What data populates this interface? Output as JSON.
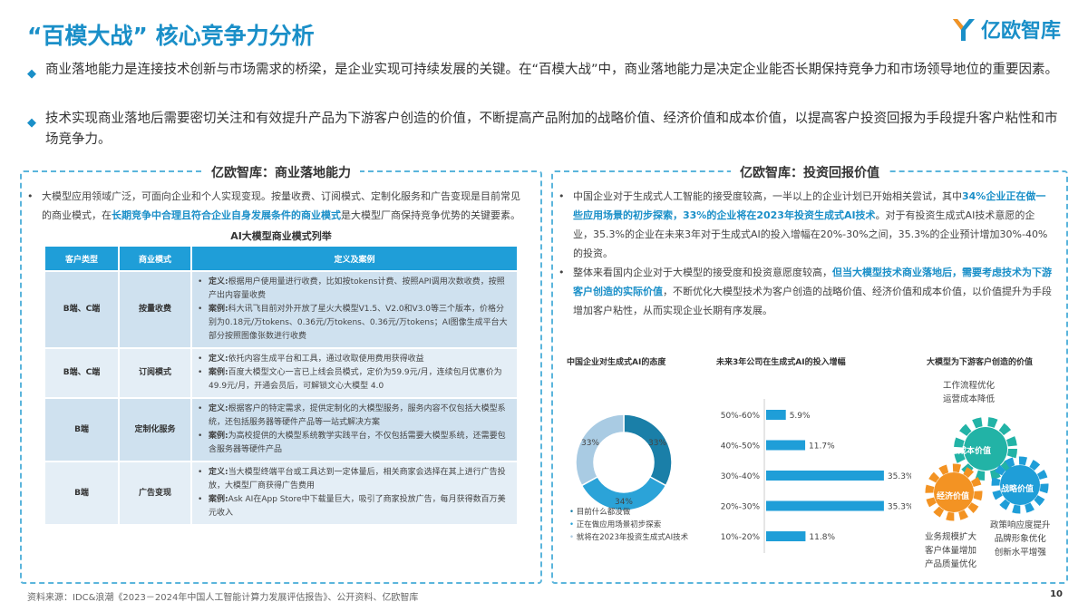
{
  "header": {
    "title": "“百模大战” 核心竞争力分析",
    "logo": "亿欧智库"
  },
  "intro": [
    "商业落地能力是连接技术创新与市场需求的桥梁，是企业实现可持续发展的关键。在“百模大战”中，商业落地能力是决定企业能否长期保持竞争力和市场领导地位的重要因素。",
    "技术实现商业落地后需要密切关注和有效提升产品为下游客户创造的价值，不断提高产品附加的战略价值、经济价值和成本价值，以提高客户投资回报为手段提升客户粘性和市场竞争力。"
  ],
  "left": {
    "title": "亿欧智库：商业落地能力",
    "bullet_a": "大模型应用领域广泛，可面向企业和个人实现变现。按量收费、订阅模式、定制化服务和广告变现是目前常见的商业模式，在",
    "bullet_hl": "长期竞争中合理且符合企业自身发展条件的商业模式",
    "bullet_b": "是大模型厂商保持竞争优势的关键要素。",
    "table_title": "AI大模型商业模式列举",
    "headers": [
      "客户类型",
      "商业模式",
      "定义及案例"
    ],
    "rows": [
      {
        "type": "B端、C端",
        "model": "按量收费",
        "def_label": "定义:",
        "def": "根据用户使用量进行收费，比如按tokens计费、按照API调用次数收费，按照产出内容量收费",
        "case_label": "案例:",
        "case": "科大讯飞目前对外开放了星火大模型V1.5、V2.0和V3.0等三个版本，价格分别为0.18元/万tokens、0.36元/万tokens、0.36元/万tokens；AI图像生成平台大部分按照图像张数进行收费"
      },
      {
        "type": "B端、C端",
        "model": "订阅模式",
        "def_label": "定义:",
        "def": "依托内容生成平台和工具，通过收取使用费用获得收益",
        "case_label": "案例:",
        "case": "百度大模型文心一言已上线会员模式，定价为59.9元/月，连续包月优惠价为49.9元/月，开通会员后，可解锁文心大模型 4.0"
      },
      {
        "type": "B端",
        "model": "定制化服务",
        "def_label": "定义:",
        "def": "根据客户的特定需求，提供定制化的大模型服务，服务内容不仅包括大模型系统，还包括服务器等硬件产品等一站式解决方案",
        "case_label": "案例:",
        "case": "为高校提供的大模型系统教学实践平台，不仅包括需要大模型系统，还需要包含服务器等硬件产品"
      },
      {
        "type": "B端",
        "model": "广告变现",
        "def_label": "定义:",
        "def": "当大模型终端平台或工具达到一定体量后，相关商家会选择在其上进行广告投放，大模型厂商获得广告费用",
        "case_label": "案例:",
        "case": "Ask AI在App Store中下载量巨大，吸引了商家投放广告，每月获得数百万美元收入"
      }
    ]
  },
  "right": {
    "title": "亿欧智库：投资回报价值",
    "p1_a": "中国企业对于生成式人工智能的接受度较高，一半以上的企业计划已开始相关尝试，其中",
    "p1_hl": "34%企业正在做一些应用场景的初步探索，33%的企业将在2023年投资生成式AI技术",
    "p1_b": "。对于有投资生成式AI技术意愿的企业，35.3%的企业在未来3年对于生成式AI的投入增幅在20%-30%之间，35.3%的企业预计增加30%-40%的投资。",
    "p2_a": "整体来看国内企业对于大模型的接受度和投资意愿度较高，",
    "p2_hl": "但当大模型技术商业落地后，需要考虑技术为下游客户创造的实际价值",
    "p2_b": "，不断优化大模型技术为客户创造的战略价值、经济价值和成本价值，以价值提升为手段增加客户粘性，从而实现企业长期有序发展。",
    "value_title": "大模型为下游客户创造的价值",
    "gears": [
      {
        "label": "成本价值",
        "desc": [
          "工作流程优化",
          "运营成本降低"
        ],
        "color": "#22b3a6"
      },
      {
        "label": "经济价值",
        "desc": [
          "业务规模扩大",
          "客户体量增加",
          "产品质量优化"
        ],
        "color": "#f39323"
      },
      {
        "label": "战略价值",
        "desc": [
          "政策响应度提升",
          "品牌形象优化",
          "创新水平增强"
        ],
        "color": "#1f9ed8"
      }
    ]
  },
  "chart_data": [
    {
      "type": "pie",
      "title": "中国企业对生成式AI的态度",
      "labels": [
        "就将在2023年投资生成式AI技术",
        "正在做应用场景初步探索",
        "目前什么都没做"
      ],
      "values": [
        33,
        34,
        33
      ],
      "value_labels": [
        "33%",
        "34%",
        "33%"
      ],
      "colors": [
        "#1a7fa8",
        "#2ba3d8",
        "#a9cbe3"
      ],
      "legend": [
        "目前什么都没做",
        "正在做应用场景初步探索",
        "就将在2023年投资生成式AI技术"
      ],
      "legend_colors": [
        "#1a7fa8",
        "#2ba3d8",
        "#a9cbe3"
      ],
      "legend_placement": "bottom"
    },
    {
      "type": "bar",
      "orientation": "horizontal",
      "title": "未来3年公司在生成式AI的投入增幅",
      "categories": [
        "50%-60%",
        "40%-50%",
        "30%-40%",
        "20%-30%",
        "10%-20%"
      ],
      "values": [
        5.9,
        11.7,
        35.3,
        35.3,
        11.8
      ],
      "value_labels": [
        "5.9%",
        "11.7%",
        "35.3%",
        "35.3%",
        "11.8%"
      ],
      "color": "#1f9ed8"
    }
  ],
  "footer": {
    "source": "资料来源：IDC&浪潮《2023－2024年中国人工智能计算力发展评估报告》、公开资料、亿欧智库",
    "page": "10"
  }
}
